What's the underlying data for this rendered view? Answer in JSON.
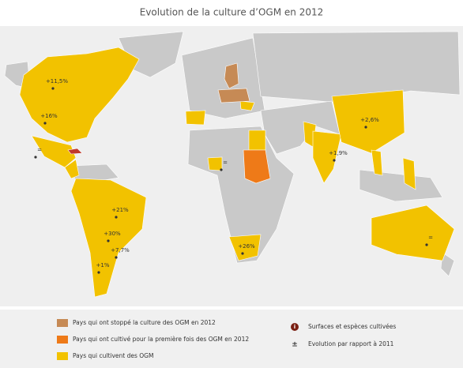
{
  "title": "Evolution de la culture d’OGM en 2012",
  "annotations": [
    {
      "label": "+11,5%"
    },
    {
      "label": "+16%"
    },
    {
      "label": "+2,6%"
    },
    {
      "label": "+1,9%"
    },
    {
      "label": "+21%"
    },
    {
      "label": "+30%"
    },
    {
      "label": "+7,7%"
    },
    {
      "label": "+1%"
    },
    {
      "label": "+26%"
    },
    {
      "label": "="
    },
    {
      "label": "="
    },
    {
      "label": "="
    }
  ],
  "legend": {
    "areas": [
      {
        "label": "Pays qui ont stoppé la culture des OGM en 2012",
        "color": "#c68a55"
      },
      {
        "label": "Pays qui ont cultivé pour la première fois des OGM en 2012",
        "color": "#ee7a18"
      },
      {
        "label": "Pays qui cultivent des OGM",
        "color": "#f2c200"
      }
    ],
    "symbols": [
      {
        "glyph": "i",
        "label": "Surfaces et espèces cultivées"
      },
      {
        "glyph": "±",
        "label": "Evolution par rapport à 2011"
      }
    ]
  }
}
